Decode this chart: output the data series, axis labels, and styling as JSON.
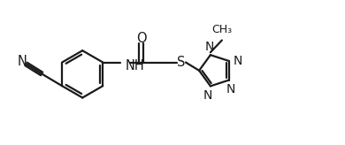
{
  "bg_color": "#ffffff",
  "line_color": "#1a1a1a",
  "line_width": 1.6,
  "font_size": 10.5,
  "fig_width": 3.9,
  "fig_height": 1.64,
  "dpi": 100,
  "xlim": [
    -0.3,
    10.2
  ],
  "ylim": [
    -1.5,
    2.0
  ]
}
